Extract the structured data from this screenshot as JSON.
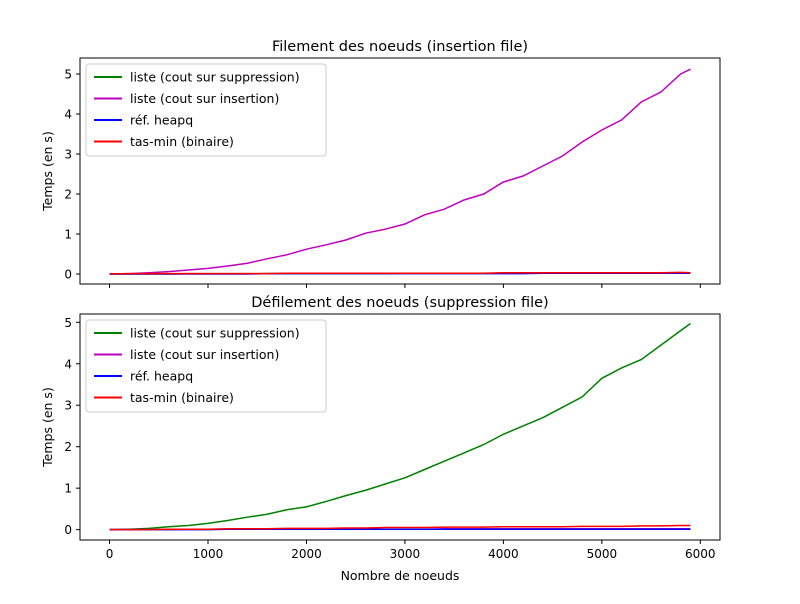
{
  "chart_data": [
    {
      "type": "line",
      "title": "Filement des noeuds (insertion file)",
      "xlabel": "",
      "ylabel": "Temps (en s)",
      "xlim": [
        -300,
        6200
      ],
      "ylim": [
        -0.25,
        5.4
      ],
      "xticks": [
        0,
        1000,
        2000,
        3000,
        4000,
        5000,
        6000
      ],
      "xtick_labels": [
        "",
        "",
        "",
        "",
        "",
        "",
        ""
      ],
      "yticks": [
        0,
        1,
        2,
        3,
        4,
        5
      ],
      "ytick_labels": [
        "0",
        "1",
        "2",
        "3",
        "4",
        "5"
      ],
      "grid": false,
      "legend_position": "top-left",
      "x": [
        0,
        200,
        400,
        600,
        800,
        1000,
        1200,
        1400,
        1600,
        1800,
        2000,
        2200,
        2400,
        2600,
        2800,
        3000,
        3200,
        3400,
        3600,
        3800,
        4000,
        4200,
        4400,
        4600,
        4800,
        5000,
        5200,
        5400,
        5600,
        5800,
        5900
      ],
      "series": [
        {
          "name": "liste (cout sur suppression)",
          "color": "#008000",
          "values": [
            0,
            0,
            0,
            0,
            0.01,
            0.01,
            0.01,
            0.01,
            0.01,
            0.01,
            0.01,
            0.01,
            0.01,
            0.01,
            0.01,
            0.02,
            0.02,
            0.02,
            0.02,
            0.02,
            0.02,
            0.02,
            0.02,
            0.02,
            0.03,
            0.03,
            0.03,
            0.03,
            0.03,
            0.03,
            0.03
          ]
        },
        {
          "name": "liste (cout sur insertion)",
          "color": "#bf00bf",
          "values": [
            0,
            0.01,
            0.03,
            0.06,
            0.1,
            0.14,
            0.2,
            0.27,
            0.38,
            0.48,
            0.62,
            0.73,
            0.85,
            1.02,
            1.12,
            1.25,
            1.48,
            1.62,
            1.85,
            2.0,
            2.3,
            2.45,
            2.7,
            2.95,
            3.3,
            3.6,
            3.85,
            4.3,
            4.55,
            5.0,
            5.12
          ]
        },
        {
          "name": "réf. heapq",
          "color": "#0000ff",
          "values": [
            0,
            0,
            0,
            0,
            0,
            0,
            0,
            0,
            0.01,
            0.01,
            0.01,
            0.01,
            0.01,
            0.01,
            0.01,
            0.01,
            0.01,
            0.01,
            0.01,
            0.01,
            0.01,
            0.01,
            0.02,
            0.02,
            0.02,
            0.02,
            0.02,
            0.02,
            0.02,
            0.02,
            0.02
          ]
        },
        {
          "name": "tas-min (binaire)",
          "color": "#ff0000",
          "values": [
            0,
            0.01,
            0.01,
            0.01,
            0.01,
            0.01,
            0.01,
            0.01,
            0.01,
            0.02,
            0.02,
            0.02,
            0.02,
            0.02,
            0.02,
            0.02,
            0.02,
            0.02,
            0.02,
            0.02,
            0.03,
            0.03,
            0.03,
            0.03,
            0.03,
            0.03,
            0.03,
            0.03,
            0.03,
            0.04,
            0.03
          ]
        }
      ]
    },
    {
      "type": "line",
      "title": "Défilement des noeuds (suppression file)",
      "xlabel": "Nombre de noeuds",
      "ylabel": "Temps (en s)",
      "xlim": [
        -300,
        6200
      ],
      "ylim": [
        -0.25,
        5.2
      ],
      "xticks": [
        0,
        1000,
        2000,
        3000,
        4000,
        5000,
        6000
      ],
      "xtick_labels": [
        "0",
        "1000",
        "2000",
        "3000",
        "4000",
        "5000",
        "6000"
      ],
      "yticks": [
        0,
        1,
        2,
        3,
        4,
        5
      ],
      "ytick_labels": [
        "0",
        "1",
        "2",
        "3",
        "4",
        "5"
      ],
      "grid": false,
      "legend_position": "top-left",
      "x": [
        0,
        200,
        400,
        600,
        800,
        1000,
        1200,
        1400,
        1600,
        1800,
        2000,
        2200,
        2400,
        2600,
        2800,
        3000,
        3200,
        3400,
        3600,
        3800,
        4000,
        4200,
        4400,
        4600,
        4800,
        5000,
        5200,
        5400,
        5600,
        5800,
        5900
      ],
      "series": [
        {
          "name": "liste (cout sur suppression)",
          "color": "#008000",
          "values": [
            0,
            0.01,
            0.03,
            0.07,
            0.1,
            0.15,
            0.22,
            0.3,
            0.37,
            0.48,
            0.55,
            0.68,
            0.82,
            0.95,
            1.1,
            1.25,
            1.45,
            1.65,
            1.85,
            2.05,
            2.3,
            2.5,
            2.7,
            2.95,
            3.2,
            3.65,
            3.9,
            4.1,
            4.45,
            4.8,
            4.97
          ]
        },
        {
          "name": "liste (cout sur insertion)",
          "color": "#bf00bf",
          "values": [
            0,
            0,
            0,
            0,
            0.01,
            0.01,
            0.01,
            0.01,
            0.01,
            0.01,
            0.01,
            0.01,
            0.01,
            0.01,
            0.01,
            0.01,
            0.01,
            0.02,
            0.02,
            0.02,
            0.02,
            0.02,
            0.02,
            0.02,
            0.02,
            0.02,
            0.02,
            0.02,
            0.02,
            0.02,
            0.02
          ]
        },
        {
          "name": "réf. heapq",
          "color": "#0000ff",
          "values": [
            0,
            0,
            0,
            0,
            0,
            0,
            0.01,
            0.01,
            0.01,
            0.01,
            0.01,
            0.01,
            0.01,
            0.01,
            0.01,
            0.01,
            0.01,
            0.01,
            0.01,
            0.01,
            0.01,
            0.01,
            0.01,
            0.01,
            0.01,
            0.01,
            0.01,
            0.01,
            0.01,
            0.01,
            0.01
          ]
        },
        {
          "name": "tas-min (binaire)",
          "color": "#ff0000",
          "values": [
            0,
            0,
            0,
            0.01,
            0.01,
            0.01,
            0.02,
            0.02,
            0.02,
            0.03,
            0.03,
            0.03,
            0.04,
            0.04,
            0.05,
            0.05,
            0.05,
            0.06,
            0.06,
            0.06,
            0.07,
            0.07,
            0.07,
            0.07,
            0.08,
            0.08,
            0.08,
            0.09,
            0.09,
            0.1,
            0.1
          ]
        }
      ]
    }
  ]
}
